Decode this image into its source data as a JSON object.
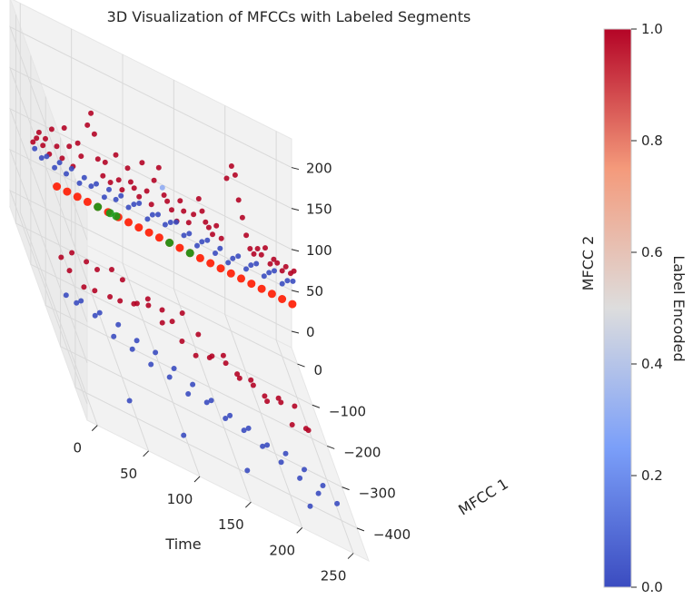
{
  "chart_data": {
    "type": "scatter",
    "projection": "3d",
    "title": "3D Visualization of MFCCs with Labeled Segments",
    "xlabel": "Time",
    "ylabel": "MFCC 1",
    "zlabel": "MFCC 2",
    "xlim": [
      -10,
      265
    ],
    "ylim": [
      -480,
      40
    ],
    "zlim": [
      -20,
      235
    ],
    "x_ticks": [
      "0",
      "50",
      "100",
      "150",
      "200",
      "250"
    ],
    "y_ticks": [
      "0",
      "−100",
      "−200",
      "−300",
      "−400"
    ],
    "z_ticks": [
      "0",
      "50",
      "100",
      "150",
      "200"
    ],
    "grid": true,
    "colorbar": {
      "label": "Label Encoded",
      "colormap": "coolwarm",
      "range": [
        0,
        1
      ],
      "ticks": [
        "0.0",
        "0.2",
        "0.4",
        "0.6",
        "0.8",
        "1.0"
      ]
    },
    "series": [
      {
        "name": "",
        "color_value": 1.0,
        "points_xyz": [
          [
            3,
            -25,
            100
          ],
          [
            6,
            -28,
            108
          ],
          [
            9,
            -24,
            115
          ],
          [
            12,
            -30,
            104
          ],
          [
            15,
            -26,
            112
          ],
          [
            18,
            -32,
            98
          ],
          [
            22,
            -20,
            125
          ],
          [
            26,
            -27,
            110
          ],
          [
            30,
            -35,
            102
          ],
          [
            34,
            -22,
            135
          ],
          [
            38,
            -28,
            118
          ],
          [
            42,
            -26,
            95
          ],
          [
            46,
            -30,
            128
          ],
          [
            50,
            -25,
            112
          ],
          [
            54,
            -40,
            160
          ],
          [
            58,
            -36,
            175
          ],
          [
            62,
            -32,
            150
          ],
          [
            66,
            -28,
            120
          ],
          [
            70,
            -34,
            105
          ],
          [
            74,
            -22,
            118
          ],
          [
            78,
            -30,
            100
          ],
          [
            82,
            -38,
            140
          ],
          [
            86,
            -30,
            108
          ],
          [
            90,
            -25,
            96
          ],
          [
            94,
            -35,
            130
          ],
          [
            98,
            -28,
            112
          ],
          [
            102,
            -24,
            105
          ],
          [
            106,
            -30,
            100
          ],
          [
            110,
            -22,
            140
          ],
          [
            114,
            -26,
            110
          ],
          [
            118,
            -30,
            98
          ],
          [
            122,
            -20,
            125
          ],
          [
            126,
            -24,
            145
          ],
          [
            130,
            -32,
            118
          ],
          [
            134,
            -26,
            110
          ],
          [
            138,
            -28,
            103
          ],
          [
            142,
            -35,
            95
          ],
          [
            146,
            -30,
            120
          ],
          [
            150,
            -26,
            108
          ],
          [
            154,
            -33,
            100
          ],
          [
            158,
            -38,
            115
          ],
          [
            162,
            -45,
            140
          ],
          [
            166,
            -40,
            125
          ],
          [
            170,
            -36,
            112
          ],
          [
            174,
            -30,
            105
          ],
          [
            178,
            -28,
            98
          ],
          [
            182,
            -26,
            110
          ],
          [
            186,
            -32,
            100
          ],
          [
            190,
            -40,
            180
          ],
          [
            194,
            -45,
            200
          ],
          [
            198,
            -42,
            190
          ],
          [
            202,
            -38,
            160
          ],
          [
            206,
            -36,
            140
          ],
          [
            210,
            -34,
            120
          ],
          [
            214,
            -32,
            105
          ],
          [
            218,
            -30,
            100
          ],
          [
            222,
            -28,
            108
          ],
          [
            226,
            -26,
            102
          ],
          [
            230,
            -24,
            112
          ],
          [
            234,
            -30,
            98
          ],
          [
            238,
            -26,
            104
          ],
          [
            242,
            -22,
            100
          ],
          [
            246,
            -28,
            96
          ],
          [
            250,
            -25,
            102
          ],
          [
            254,
            -30,
            99
          ],
          [
            258,
            -24,
            101
          ],
          [
            8,
            -180,
            40
          ],
          [
            14,
            -195,
            35
          ],
          [
            20,
            -170,
            48
          ],
          [
            26,
            -210,
            30
          ],
          [
            32,
            -185,
            52
          ],
          [
            38,
            -200,
            28
          ],
          [
            44,
            -175,
            45
          ],
          [
            50,
            -220,
            38
          ],
          [
            56,
            -190,
            60
          ],
          [
            62,
            -205,
            33
          ],
          [
            68,
            -180,
            50
          ],
          [
            74,
            -215,
            42
          ],
          [
            80,
            -195,
            36
          ],
          [
            86,
            -230,
            55
          ],
          [
            92,
            -185,
            44
          ],
          [
            98,
            -240,
            62
          ],
          [
            104,
            -200,
            30
          ],
          [
            110,
            -225,
            48
          ],
          [
            116,
            -250,
            40
          ],
          [
            122,
            -210,
            58
          ],
          [
            128,
            -260,
            35
          ],
          [
            134,
            -235,
            52
          ],
          [
            140,
            -270,
            45
          ],
          [
            146,
            -245,
            38
          ],
          [
            152,
            -280,
            60
          ],
          [
            158,
            -255,
            42
          ],
          [
            164,
            -290,
            50
          ],
          [
            170,
            -265,
            36
          ],
          [
            176,
            -300,
            55
          ],
          [
            182,
            -275,
            40
          ],
          [
            188,
            -310,
            48
          ],
          [
            194,
            -285,
            33
          ],
          [
            200,
            -320,
            58
          ],
          [
            206,
            -295,
            44
          ],
          [
            212,
            -330,
            38
          ],
          [
            218,
            -305,
            52
          ],
          [
            224,
            -340,
            46
          ],
          [
            230,
            -315,
            35
          ]
        ]
      },
      {
        "name": "",
        "color_value": 0.0,
        "points_xyz": [
          [
            4,
            -30,
            95
          ],
          [
            10,
            -35,
            90
          ],
          [
            16,
            -28,
            92
          ],
          [
            22,
            -40,
            88
          ],
          [
            28,
            -32,
            94
          ],
          [
            34,
            -36,
            86
          ],
          [
            40,
            -30,
            93
          ],
          [
            46,
            -42,
            85
          ],
          [
            52,
            -33,
            91
          ],
          [
            58,
            -38,
            87
          ],
          [
            64,
            -31,
            90
          ],
          [
            70,
            -44,
            84
          ],
          [
            76,
            -34,
            92
          ],
          [
            82,
            -39,
            86
          ],
          [
            88,
            -32,
            91
          ],
          [
            94,
            -41,
            85
          ],
          [
            100,
            -36,
            90
          ],
          [
            106,
            -30,
            92
          ],
          [
            112,
            -45,
            84
          ],
          [
            118,
            -37,
            89
          ],
          [
            124,
            -33,
            91
          ],
          [
            130,
            -40,
            86
          ],
          [
            136,
            -35,
            90
          ],
          [
            142,
            -31,
            92
          ],
          [
            148,
            -42,
            85
          ],
          [
            154,
            -36,
            88
          ],
          [
            160,
            -48,
            83
          ],
          [
            166,
            -39,
            87
          ],
          [
            172,
            -34,
            90
          ],
          [
            178,
            -46,
            84
          ],
          [
            184,
            -37,
            89
          ],
          [
            190,
            -50,
            82
          ],
          [
            196,
            -40,
            86
          ],
          [
            202,
            -35,
            90
          ],
          [
            208,
            -47,
            84
          ],
          [
            214,
            -38,
            88
          ],
          [
            220,
            -33,
            91
          ],
          [
            226,
            -44,
            85
          ],
          [
            232,
            -36,
            89
          ],
          [
            238,
            -30,
            92
          ],
          [
            244,
            -42,
            86
          ],
          [
            250,
            -35,
            90
          ],
          [
            256,
            -31,
            91
          ],
          [
            10,
            -200,
            5
          ],
          [
            18,
            -215,
            8
          ],
          [
            26,
            -190,
            3
          ],
          [
            34,
            -230,
            10
          ],
          [
            42,
            -205,
            6
          ],
          [
            50,
            -245,
            2
          ],
          [
            58,
            -220,
            9
          ],
          [
            66,
            -260,
            4
          ],
          [
            74,
            -235,
            7
          ],
          [
            82,
            -275,
            3
          ],
          [
            90,
            -250,
            10
          ],
          [
            98,
            -290,
            5
          ],
          [
            106,
            -265,
            8
          ],
          [
            114,
            -305,
            2
          ],
          [
            122,
            -280,
            6
          ],
          [
            130,
            -320,
            9
          ],
          [
            138,
            -295,
            4
          ],
          [
            146,
            -335,
            7
          ],
          [
            154,
            -310,
            3
          ],
          [
            162,
            -350,
            10
          ],
          [
            170,
            -325,
            5
          ],
          [
            178,
            -365,
            8
          ],
          [
            186,
            -340,
            2
          ],
          [
            194,
            -380,
            6
          ],
          [
            202,
            -355,
            9
          ],
          [
            210,
            -395,
            4
          ],
          [
            218,
            -370,
            7
          ],
          [
            226,
            -410,
            3
          ],
          [
            234,
            -385,
            5
          ],
          [
            242,
            -425,
            8
          ],
          [
            40,
            -420,
            5
          ],
          [
            90,
            -440,
            4
          ],
          [
            150,
            -455,
            6
          ],
          [
            210,
            -465,
            5
          ]
        ]
      },
      {
        "name": "",
        "color_value": 0.3,
        "points_xyz": [
          [
            120,
            -90,
            150
          ]
        ]
      },
      {
        "name": "",
        "marker": "red-line",
        "points_xyz": [
          [
            30,
            0,
            50
          ],
          [
            40,
            0,
            50
          ],
          [
            50,
            0,
            50
          ],
          [
            60,
            0,
            50
          ],
          [
            70,
            0,
            50
          ],
          [
            80,
            0,
            50
          ],
          [
            90,
            0,
            50
          ],
          [
            100,
            0,
            50
          ],
          [
            110,
            0,
            50
          ],
          [
            120,
            0,
            50
          ],
          [
            130,
            0,
            50
          ],
          [
            140,
            0,
            50
          ],
          [
            150,
            0,
            50
          ],
          [
            160,
            0,
            50
          ],
          [
            170,
            0,
            50
          ],
          [
            180,
            0,
            50
          ],
          [
            190,
            0,
            50
          ],
          [
            200,
            0,
            50
          ],
          [
            210,
            0,
            50
          ],
          [
            220,
            0,
            50
          ],
          [
            230,
            0,
            50
          ],
          [
            240,
            0,
            50
          ],
          [
            250,
            0,
            50
          ],
          [
            260,
            0,
            50
          ]
        ]
      },
      {
        "name": "",
        "marker": "green",
        "points_xyz": [
          [
            70,
            0,
            50
          ],
          [
            82,
            0,
            50
          ],
          [
            88,
            0,
            50
          ],
          [
            140,
            0,
            50
          ],
          [
            160,
            0,
            50
          ]
        ]
      }
    ]
  }
}
